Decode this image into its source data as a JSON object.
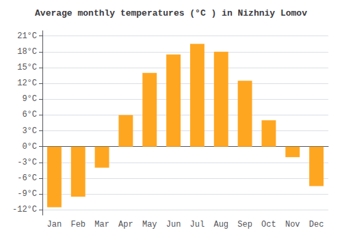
{
  "chart_data": {
    "type": "bar",
    "title": "Average monthly temperatures (°C ) in Nizhniy Lomov",
    "categories": [
      "Jan",
      "Feb",
      "Mar",
      "Apr",
      "May",
      "Jun",
      "Jul",
      "Aug",
      "Sep",
      "Oct",
      "Nov",
      "Dec"
    ],
    "values": [
      -11.5,
      -9.5,
      -4.0,
      6.0,
      14.0,
      17.5,
      19.5,
      18.0,
      12.5,
      5.0,
      -2.0,
      -7.5
    ],
    "color": "#FFA620",
    "ylim": [
      -13,
      22
    ],
    "yticks": [
      {
        "value": -12,
        "label": "-12°C"
      },
      {
        "value": -9,
        "label": "-9°C"
      },
      {
        "value": -6,
        "label": "-6°C"
      },
      {
        "value": -3,
        "label": "-3°C"
      },
      {
        "value": 0,
        "label": "0°C"
      },
      {
        "value": 3,
        "label": "3°C"
      },
      {
        "value": 6,
        "label": "6°C"
      },
      {
        "value": 9,
        "label": "9°C"
      },
      {
        "value": 12,
        "label": "12°C"
      },
      {
        "value": 15,
        "label": "15°C"
      },
      {
        "value": 18,
        "label": "18°C"
      },
      {
        "value": 21,
        "label": "21°C"
      }
    ],
    "grid": true
  }
}
